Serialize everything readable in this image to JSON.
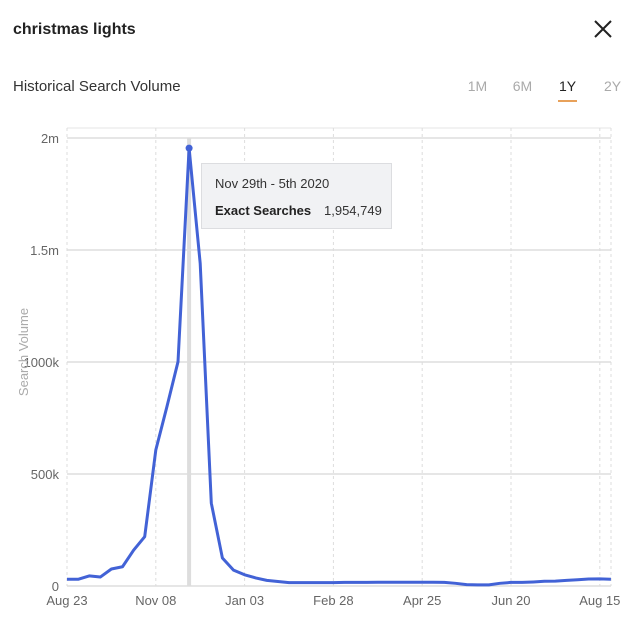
{
  "header": {
    "title": "christmas lights",
    "close_icon": "close-icon"
  },
  "section_title": "Historical Search Volume",
  "ranges": [
    {
      "label": "1M",
      "active": false
    },
    {
      "label": "6M",
      "active": false
    },
    {
      "label": "1Y",
      "active": true
    },
    {
      "label": "2Y",
      "active": false
    }
  ],
  "accent": "#e8a15a",
  "line_color": "#4262d6",
  "tooltip": {
    "date": "Nov 29th - 5th 2020",
    "label": "Exact Searches",
    "value": "1,954,749"
  },
  "chart_data": {
    "type": "line",
    "title": "Historical Search Volume",
    "xlabel": "",
    "ylabel": "Search Volume",
    "ylim": [
      0,
      2000000
    ],
    "yticks": [
      {
        "v": 0,
        "label": "0"
      },
      {
        "v": 500000,
        "label": "500k"
      },
      {
        "v": 1000000,
        "label": "1000k"
      },
      {
        "v": 1500000,
        "label": "1.5m"
      },
      {
        "v": 2000000,
        "label": "2m"
      }
    ],
    "xticks": [
      {
        "week": 0,
        "label": "Aug 23"
      },
      {
        "week": 8,
        "label": "Nov 08"
      },
      {
        "week": 16,
        "label": "Jan 03"
      },
      {
        "week": 24,
        "label": "Feb 28"
      },
      {
        "week": 32,
        "label": "Apr 25"
      },
      {
        "week": 40,
        "label": "Jun 20"
      },
      {
        "week": 48,
        "label": "Aug 15"
      }
    ],
    "highlight_week": 11,
    "series": [
      {
        "name": "Exact Searches",
        "values": [
          30000,
          30000,
          45000,
          40000,
          76000,
          86000,
          160000,
          220000,
          607000,
          800000,
          1001000,
          1954749,
          1440000,
          370000,
          125000,
          71000,
          50000,
          36000,
          25000,
          20000,
          15000,
          15000,
          15000,
          15000,
          15000,
          16000,
          16000,
          16000,
          17000,
          17000,
          17000,
          17000,
          17000,
          17000,
          16000,
          12000,
          6000,
          5000,
          5000,
          12000,
          16000,
          16000,
          18000,
          21000,
          22000,
          25000,
          28000,
          31000,
          32000,
          30000
        ]
      }
    ]
  }
}
